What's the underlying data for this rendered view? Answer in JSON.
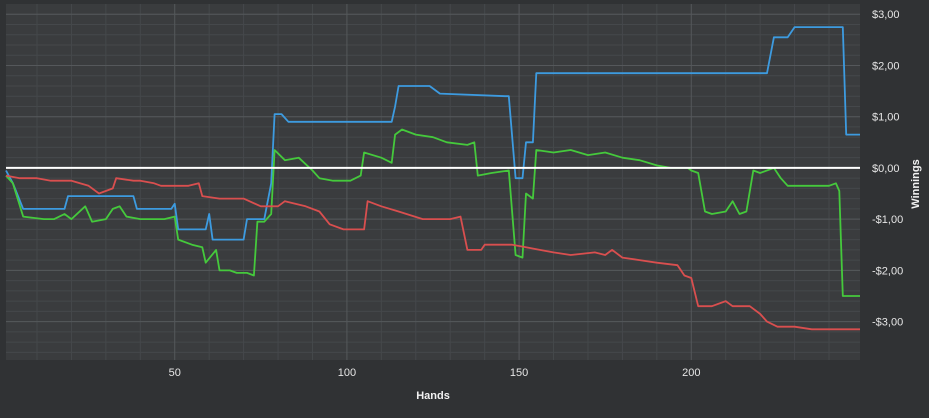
{
  "chart_data": {
    "type": "line",
    "xlabel": "Hands",
    "ylabel": "Winnings",
    "xlim": [
      1,
      249
    ],
    "ylim": [
      -3.75,
      3.2
    ],
    "x_ticks": [
      50,
      100,
      150,
      200
    ],
    "y_ticks": [
      3,
      2,
      1,
      0,
      -1,
      -2,
      -3
    ],
    "y_tick_labels": [
      "$3,00",
      "$2,00",
      "$1,00",
      "$0,00",
      "-$1,00",
      "-$2,00",
      "-$3,00"
    ],
    "grid": true,
    "zero_line": true,
    "colors": {
      "background": "#303234",
      "plot_background": "#3a3c3e",
      "grid": "#55585b",
      "minor_grid": "#45484b",
      "zero_line": "#ffffff",
      "text": "#e6e6e6"
    },
    "series": [
      {
        "color": "#3d9be0",
        "points": [
          [
            1,
            -0.05
          ],
          [
            3,
            -0.3
          ],
          [
            6,
            -0.8
          ],
          [
            18,
            -0.8
          ],
          [
            19,
            -0.55
          ],
          [
            38,
            -0.55
          ],
          [
            39,
            -0.8
          ],
          [
            49,
            -0.8
          ],
          [
            50,
            -0.7
          ],
          [
            51,
            -1.2
          ],
          [
            59,
            -1.2
          ],
          [
            60,
            -0.9
          ],
          [
            61,
            -1.4
          ],
          [
            70,
            -1.4
          ],
          [
            71,
            -1.0
          ],
          [
            76,
            -1.0
          ],
          [
            78,
            -0.3
          ],
          [
            79,
            1.05
          ],
          [
            81,
            1.05
          ],
          [
            83,
            0.9
          ],
          [
            113,
            0.9
          ],
          [
            114,
            1.2
          ],
          [
            115,
            1.6
          ],
          [
            124,
            1.6
          ],
          [
            127,
            1.45
          ],
          [
            146,
            1.4
          ],
          [
            147,
            1.4
          ],
          [
            149,
            -0.2
          ],
          [
            151,
            -0.2
          ],
          [
            152,
            0.5
          ],
          [
            154,
            0.5
          ],
          [
            155,
            1.85
          ],
          [
            222,
            1.85
          ],
          [
            224,
            2.55
          ],
          [
            228,
            2.55
          ],
          [
            230,
            2.75
          ],
          [
            242,
            2.75
          ],
          [
            244,
            2.75
          ],
          [
            245,
            0.65
          ],
          [
            249,
            0.65
          ]
        ]
      },
      {
        "color": "#45c93c",
        "points": [
          [
            1,
            -0.15
          ],
          [
            3,
            -0.3
          ],
          [
            6,
            -0.95
          ],
          [
            12,
            -1.0
          ],
          [
            15,
            -1.0
          ],
          [
            18,
            -0.9
          ],
          [
            20,
            -1.0
          ],
          [
            24,
            -0.75
          ],
          [
            26,
            -1.05
          ],
          [
            30,
            -1.0
          ],
          [
            32,
            -0.8
          ],
          [
            34,
            -0.75
          ],
          [
            36,
            -0.95
          ],
          [
            40,
            -1.0
          ],
          [
            45,
            -1.0
          ],
          [
            47,
            -1.0
          ],
          [
            50,
            -0.95
          ],
          [
            51,
            -1.4
          ],
          [
            55,
            -1.5
          ],
          [
            58,
            -1.55
          ],
          [
            59,
            -1.85
          ],
          [
            62,
            -1.6
          ],
          [
            63,
            -2.0
          ],
          [
            66,
            -2.0
          ],
          [
            68,
            -2.05
          ],
          [
            71,
            -2.05
          ],
          [
            73,
            -2.1
          ],
          [
            74,
            -1.05
          ],
          [
            76,
            -1.05
          ],
          [
            78,
            -0.9
          ],
          [
            79,
            0.35
          ],
          [
            82,
            0.15
          ],
          [
            86,
            0.2
          ],
          [
            90,
            -0.05
          ],
          [
            92,
            -0.2
          ],
          [
            96,
            -0.25
          ],
          [
            101,
            -0.25
          ],
          [
            104,
            -0.15
          ],
          [
            105,
            0.3
          ],
          [
            110,
            0.2
          ],
          [
            113,
            0.1
          ],
          [
            114,
            0.65
          ],
          [
            116,
            0.75
          ],
          [
            120,
            0.65
          ],
          [
            125,
            0.6
          ],
          [
            129,
            0.5
          ],
          [
            135,
            0.45
          ],
          [
            137,
            0.5
          ],
          [
            138,
            -0.15
          ],
          [
            142,
            -0.1
          ],
          [
            147,
            -0.05
          ],
          [
            149,
            -1.7
          ],
          [
            151,
            -1.75
          ],
          [
            152,
            -0.5
          ],
          [
            154,
            -0.6
          ],
          [
            155,
            0.35
          ],
          [
            160,
            0.3
          ],
          [
            165,
            0.35
          ],
          [
            170,
            0.25
          ],
          [
            175,
            0.3
          ],
          [
            180,
            0.2
          ],
          [
            185,
            0.15
          ],
          [
            190,
            0.05
          ],
          [
            194,
            0.0
          ],
          [
            199,
            0.0
          ],
          [
            200,
            -0.05
          ],
          [
            202,
            -0.1
          ],
          [
            204,
            -0.85
          ],
          [
            206,
            -0.9
          ],
          [
            210,
            -0.85
          ],
          [
            212,
            -0.65
          ],
          [
            214,
            -0.9
          ],
          [
            216,
            -0.85
          ],
          [
            218,
            -0.05
          ],
          [
            220,
            -0.1
          ],
          [
            224,
            0.0
          ],
          [
            226,
            -0.2
          ],
          [
            228,
            -0.35
          ],
          [
            231,
            -0.35
          ],
          [
            236,
            -0.35
          ],
          [
            240,
            -0.35
          ],
          [
            242,
            -0.3
          ],
          [
            243,
            -0.45
          ],
          [
            244,
            -2.5
          ],
          [
            246,
            -2.5
          ],
          [
            249,
            -2.5
          ]
        ]
      },
      {
        "color": "#d94f4f",
        "points": [
          [
            1,
            -0.15
          ],
          [
            5,
            -0.2
          ],
          [
            10,
            -0.2
          ],
          [
            14,
            -0.25
          ],
          [
            20,
            -0.25
          ],
          [
            25,
            -0.35
          ],
          [
            28,
            -0.5
          ],
          [
            32,
            -0.4
          ],
          [
            33,
            -0.2
          ],
          [
            38,
            -0.25
          ],
          [
            40,
            -0.25
          ],
          [
            44,
            -0.3
          ],
          [
            46,
            -0.35
          ],
          [
            54,
            -0.35
          ],
          [
            57,
            -0.3
          ],
          [
            58,
            -0.55
          ],
          [
            63,
            -0.6
          ],
          [
            70,
            -0.6
          ],
          [
            75,
            -0.75
          ],
          [
            80,
            -0.75
          ],
          [
            82,
            -0.65
          ],
          [
            88,
            -0.75
          ],
          [
            92,
            -0.85
          ],
          [
            95,
            -1.1
          ],
          [
            99,
            -1.2
          ],
          [
            105,
            -1.2
          ],
          [
            106,
            -0.65
          ],
          [
            110,
            -0.75
          ],
          [
            115,
            -0.85
          ],
          [
            122,
            -1.0
          ],
          [
            130,
            -1.0
          ],
          [
            133,
            -0.95
          ],
          [
            135,
            -1.6
          ],
          [
            139,
            -1.6
          ],
          [
            140,
            -1.5
          ],
          [
            148,
            -1.5
          ],
          [
            152,
            -1.55
          ],
          [
            156,
            -1.6
          ],
          [
            160,
            -1.65
          ],
          [
            165,
            -1.7
          ],
          [
            172,
            -1.65
          ],
          [
            175,
            -1.7
          ],
          [
            177,
            -1.6
          ],
          [
            180,
            -1.75
          ],
          [
            185,
            -1.8
          ],
          [
            190,
            -1.85
          ],
          [
            196,
            -1.9
          ],
          [
            198,
            -2.1
          ],
          [
            200,
            -2.15
          ],
          [
            202,
            -2.7
          ],
          [
            206,
            -2.7
          ],
          [
            210,
            -2.6
          ],
          [
            212,
            -2.7
          ],
          [
            217,
            -2.7
          ],
          [
            220,
            -2.85
          ],
          [
            222,
            -3.0
          ],
          [
            225,
            -3.1
          ],
          [
            230,
            -3.1
          ],
          [
            235,
            -3.15
          ],
          [
            240,
            -3.15
          ],
          [
            245,
            -3.15
          ],
          [
            249,
            -3.15
          ]
        ]
      }
    ]
  }
}
